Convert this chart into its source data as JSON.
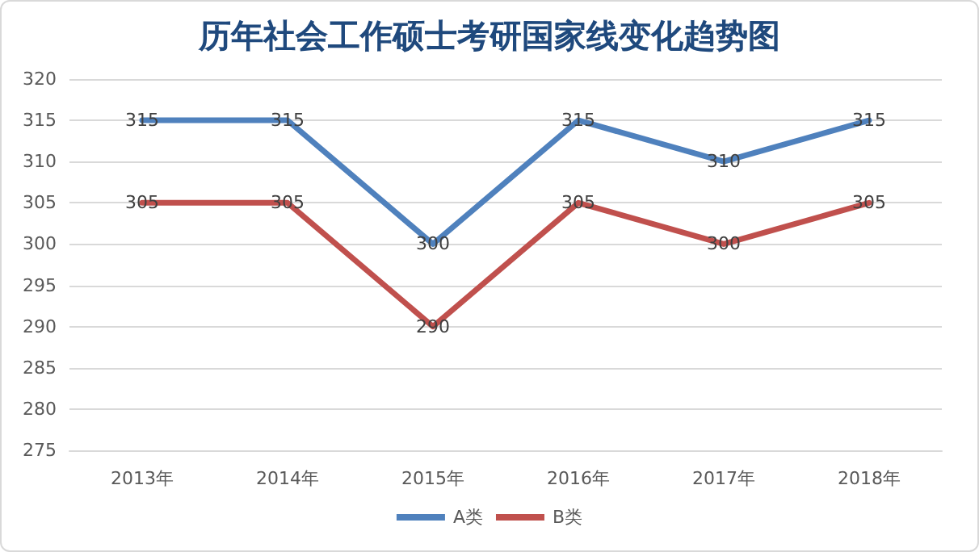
{
  "chart_data": {
    "type": "line",
    "title": "历年社会工作硕士考研国家线变化趋势图",
    "categories": [
      "2013年",
      "2014年",
      "2015年",
      "2016年",
      "2017年",
      "2018年"
    ],
    "series": [
      {
        "name": "A类",
        "color": "#4f81bd",
        "values": [
          315,
          315,
          300,
          315,
          310,
          315
        ]
      },
      {
        "name": "B类",
        "color": "#c0504d",
        "values": [
          305,
          305,
          290,
          305,
          300,
          305
        ]
      }
    ],
    "ylim": [
      275,
      320
    ],
    "yticks": [
      275,
      280,
      285,
      290,
      295,
      300,
      305,
      310,
      315,
      320
    ],
    "grid": "y",
    "legend": "bottom",
    "marker": "none",
    "line_style": "solid",
    "data_labels": true
  }
}
